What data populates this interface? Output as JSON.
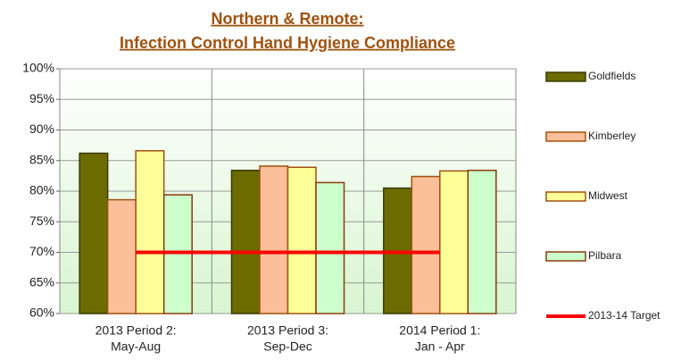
{
  "chart_data": {
    "type": "bar",
    "title": [
      "Northern & Remote:",
      "Infection Control Hand Hygiene Compliance"
    ],
    "categories": [
      [
        "2013 Period 2:",
        "May-Aug"
      ],
      [
        "2013 Period 3:",
        "Sep-Dec"
      ],
      [
        "2014 Period 1:",
        "Jan - Apr"
      ]
    ],
    "series": [
      {
        "name": "Goldfields",
        "color": "#6b6b00",
        "stroke": "#3a3a00",
        "values": [
          86.2,
          83.4,
          80.5
        ]
      },
      {
        "name": "Kimberley",
        "color": "#fbbf9a",
        "stroke": "#a0520f",
        "values": [
          78.6,
          84.1,
          82.4
        ]
      },
      {
        "name": "Midwest",
        "color": "#ffff99",
        "stroke": "#a0520f",
        "values": [
          86.6,
          83.9,
          83.3
        ]
      },
      {
        "name": "Pilbara",
        "color": "#ccffcc",
        "stroke": "#8b3a0f",
        "values": [
          79.4,
          81.4,
          83.4
        ]
      },
      {
        "name": "2013-14 Target",
        "type": "line",
        "color": "#ff0000",
        "values": [
          70,
          70,
          70
        ]
      }
    ],
    "ylim": [
      60,
      100
    ],
    "yticks": [
      {
        "value": 60,
        "label": "60%"
      },
      {
        "value": 65,
        "label": "65%"
      },
      {
        "value": 70,
        "label": "70%"
      },
      {
        "value": 75,
        "label": "75%"
      },
      {
        "value": 80,
        "label": "80%"
      },
      {
        "value": 85,
        "label": "85%"
      },
      {
        "value": 90,
        "label": "90%"
      },
      {
        "value": 95,
        "label": "95%"
      },
      {
        "value": 100,
        "label": "100%"
      }
    ],
    "grid": true,
    "legend": "right"
  }
}
